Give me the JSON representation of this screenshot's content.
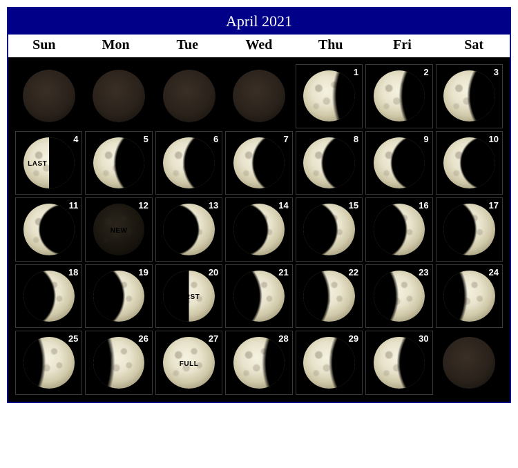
{
  "title": "April 2021",
  "title_bg": "#000088",
  "border_color": "#000088",
  "weekdays": [
    "Sun",
    "Mon",
    "Tue",
    "Wed",
    "Thu",
    "Fri",
    "Sat"
  ],
  "weeks": [
    [
      {
        "blank": true,
        "phase": "dark",
        "noborder": true
      },
      {
        "blank": true,
        "phase": "dark",
        "noborder": true
      },
      {
        "blank": true,
        "phase": "dark",
        "noborder": true
      },
      {
        "blank": true,
        "phase": "dark",
        "noborder": true
      },
      {
        "day": 1,
        "phase": "wan-gib-1"
      },
      {
        "day": 2,
        "phase": "wan-gib-2"
      },
      {
        "day": 3,
        "phase": "wan-gib-3"
      }
    ],
    [
      {
        "day": 4,
        "phase": "last-q",
        "label": "LAST"
      },
      {
        "day": 5,
        "phase": "wan-cres-1"
      },
      {
        "day": 6,
        "phase": "wan-cres-2"
      },
      {
        "day": 7,
        "phase": "wan-cres-3"
      },
      {
        "day": 8,
        "phase": "wan-cres-4"
      },
      {
        "day": 9,
        "phase": "wan-cres-5"
      },
      {
        "day": 10,
        "phase": "wan-cres-6"
      }
    ],
    [
      {
        "day": 11,
        "phase": "wan-cres-7"
      },
      {
        "day": 12,
        "phase": "newmoon",
        "label": "NEW"
      },
      {
        "day": 13,
        "phase": "wax-cres-1"
      },
      {
        "day": 14,
        "phase": "wax-cres-2"
      },
      {
        "day": 15,
        "phase": "wax-cres-3"
      },
      {
        "day": 16,
        "phase": "wax-cres-4"
      },
      {
        "day": 17,
        "phase": "wax-cres-5"
      }
    ],
    [
      {
        "day": 18,
        "phase": "wax-cres-6"
      },
      {
        "day": 19,
        "phase": "wax-cres-7"
      },
      {
        "day": 20,
        "phase": "first-q",
        "label": "FIRST"
      },
      {
        "day": 21,
        "phase": "wax-gib-1"
      },
      {
        "day": 22,
        "phase": "wax-gib-2"
      },
      {
        "day": 23,
        "phase": "wax-gib-3"
      },
      {
        "day": 24,
        "phase": "wax-gib-4"
      }
    ],
    [
      {
        "day": 25,
        "phase": "wax-gib-5"
      },
      {
        "day": 26,
        "phase": "wax-gib-6"
      },
      {
        "day": 27,
        "phase": "full",
        "label": "FULL"
      },
      {
        "day": 28,
        "phase": "wan-gib-1"
      },
      {
        "day": 29,
        "phase": "wan-gib-2"
      },
      {
        "day": 30,
        "phase": "wan-gib-3"
      },
      {
        "blank": true,
        "phase": "dark",
        "noborder": true
      }
    ]
  ],
  "colors": {
    "moon_light": "#e8e3cc",
    "moon_dark": "#1a160f",
    "grid_bg": "#000000",
    "cell_border": "#3a3a3a",
    "day_num_color": "#ffffff"
  },
  "font": {
    "title_size_pt": 18,
    "weekday_size_pt": 16,
    "daynum_size_pt": 10,
    "label_size_pt": 8
  }
}
